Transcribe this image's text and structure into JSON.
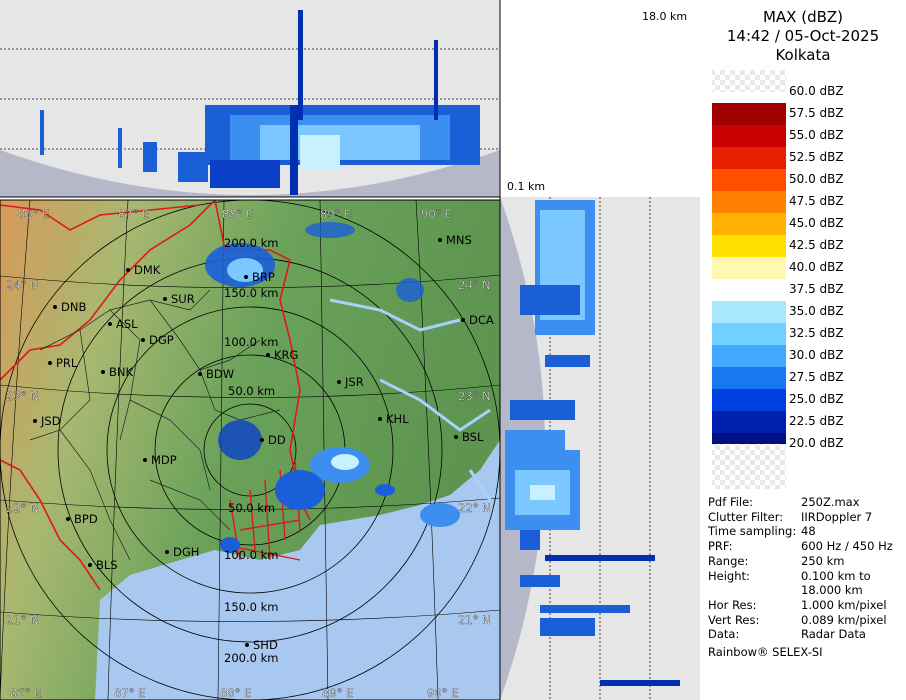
{
  "header": {
    "product": "MAX (dBZ)",
    "datetime": "14:42 / 05-Oct-2025",
    "station": "Kolkata"
  },
  "side_panel_top_label": "18.0 km",
  "side_panel_bottom_label": "0.1 km",
  "legend": {
    "entries": [
      {
        "label": "60.0 dBZ",
        "color": "checker"
      },
      {
        "label": "57.5 dBZ",
        "color": "#a00000"
      },
      {
        "label": "55.0 dBZ",
        "color": "#c80000"
      },
      {
        "label": "52.5 dBZ",
        "color": "#e62000"
      },
      {
        "label": "50.0 dBZ",
        "color": "#ff5000"
      },
      {
        "label": "47.5 dBZ",
        "color": "#ff8000"
      },
      {
        "label": "45.0 dBZ",
        "color": "#ffb000"
      },
      {
        "label": "42.5 dBZ",
        "color": "#ffe000"
      },
      {
        "label": "40.0 dBZ",
        "color": "#fff8b0"
      },
      {
        "label": "37.5 dBZ",
        "color": "#ffffff"
      },
      {
        "label": "35.0 dBZ",
        "color": "#a8e8ff"
      },
      {
        "label": "32.5 dBZ",
        "color": "#70d0ff"
      },
      {
        "label": "30.0 dBZ",
        "color": "#40a8ff"
      },
      {
        "label": "27.5 dBZ",
        "color": "#1878f0"
      },
      {
        "label": "25.0 dBZ",
        "color": "#0040e0"
      },
      {
        "label": "22.5 dBZ",
        "color": "#0020b0"
      },
      {
        "label": "20.0 dBZ",
        "color": "#001080"
      }
    ]
  },
  "metadata": [
    {
      "key": "Pdf File:",
      "value": "250Z.max"
    },
    {
      "key": "Clutter Filter:",
      "value": "IIRDoppler 7"
    },
    {
      "key": "Time sampling:",
      "value": "48"
    },
    {
      "key": "PRF:",
      "value": "600 Hz / 450 Hz"
    },
    {
      "key": "Range:",
      "value": "250 km"
    },
    {
      "key": "Height:",
      "value": "0.100 km to"
    },
    {
      "key": "",
      "value": "18.000 km"
    },
    {
      "key": "Hor Res:",
      "value": "1.000 km/pixel"
    },
    {
      "key": "Vert Res:",
      "value": "0.089 km/pixel"
    },
    {
      "key": "Data:",
      "value": "Radar Data"
    }
  ],
  "footer": "Rainbow® SELEX-SI",
  "map": {
    "lon_labels_top": [
      "86° E",
      "87° E",
      "88° E",
      "89° E",
      "90° E"
    ],
    "lon_labels_bottom": [
      "86° E",
      "87° E",
      "88° E",
      "89° E",
      "90° E"
    ],
    "lat_labels_left": [
      "24° N",
      "23° N",
      "22° N",
      "21° N"
    ],
    "lat_labels_right": [
      "24° N",
      "23° N",
      "22° N",
      "21° N"
    ],
    "range_rings": [
      "50.0 km",
      "100.0 km",
      "150.0 km",
      "200.0 km"
    ],
    "range_rings_north": [
      "50.0 km",
      "100.0 km",
      "150.0 km",
      "200.0 km"
    ],
    "stations": [
      "MNS",
      "DMK",
      "BRP",
      "SUR",
      "DNB",
      "ASL",
      "DGP",
      "KRG",
      "DCA",
      "PRL",
      "BNK",
      "BDW",
      "JSR",
      "KHL",
      "JSD",
      "BSL",
      "MDP",
      "DD",
      "BPD",
      "DGH",
      "BLS",
      "SHD"
    ]
  }
}
